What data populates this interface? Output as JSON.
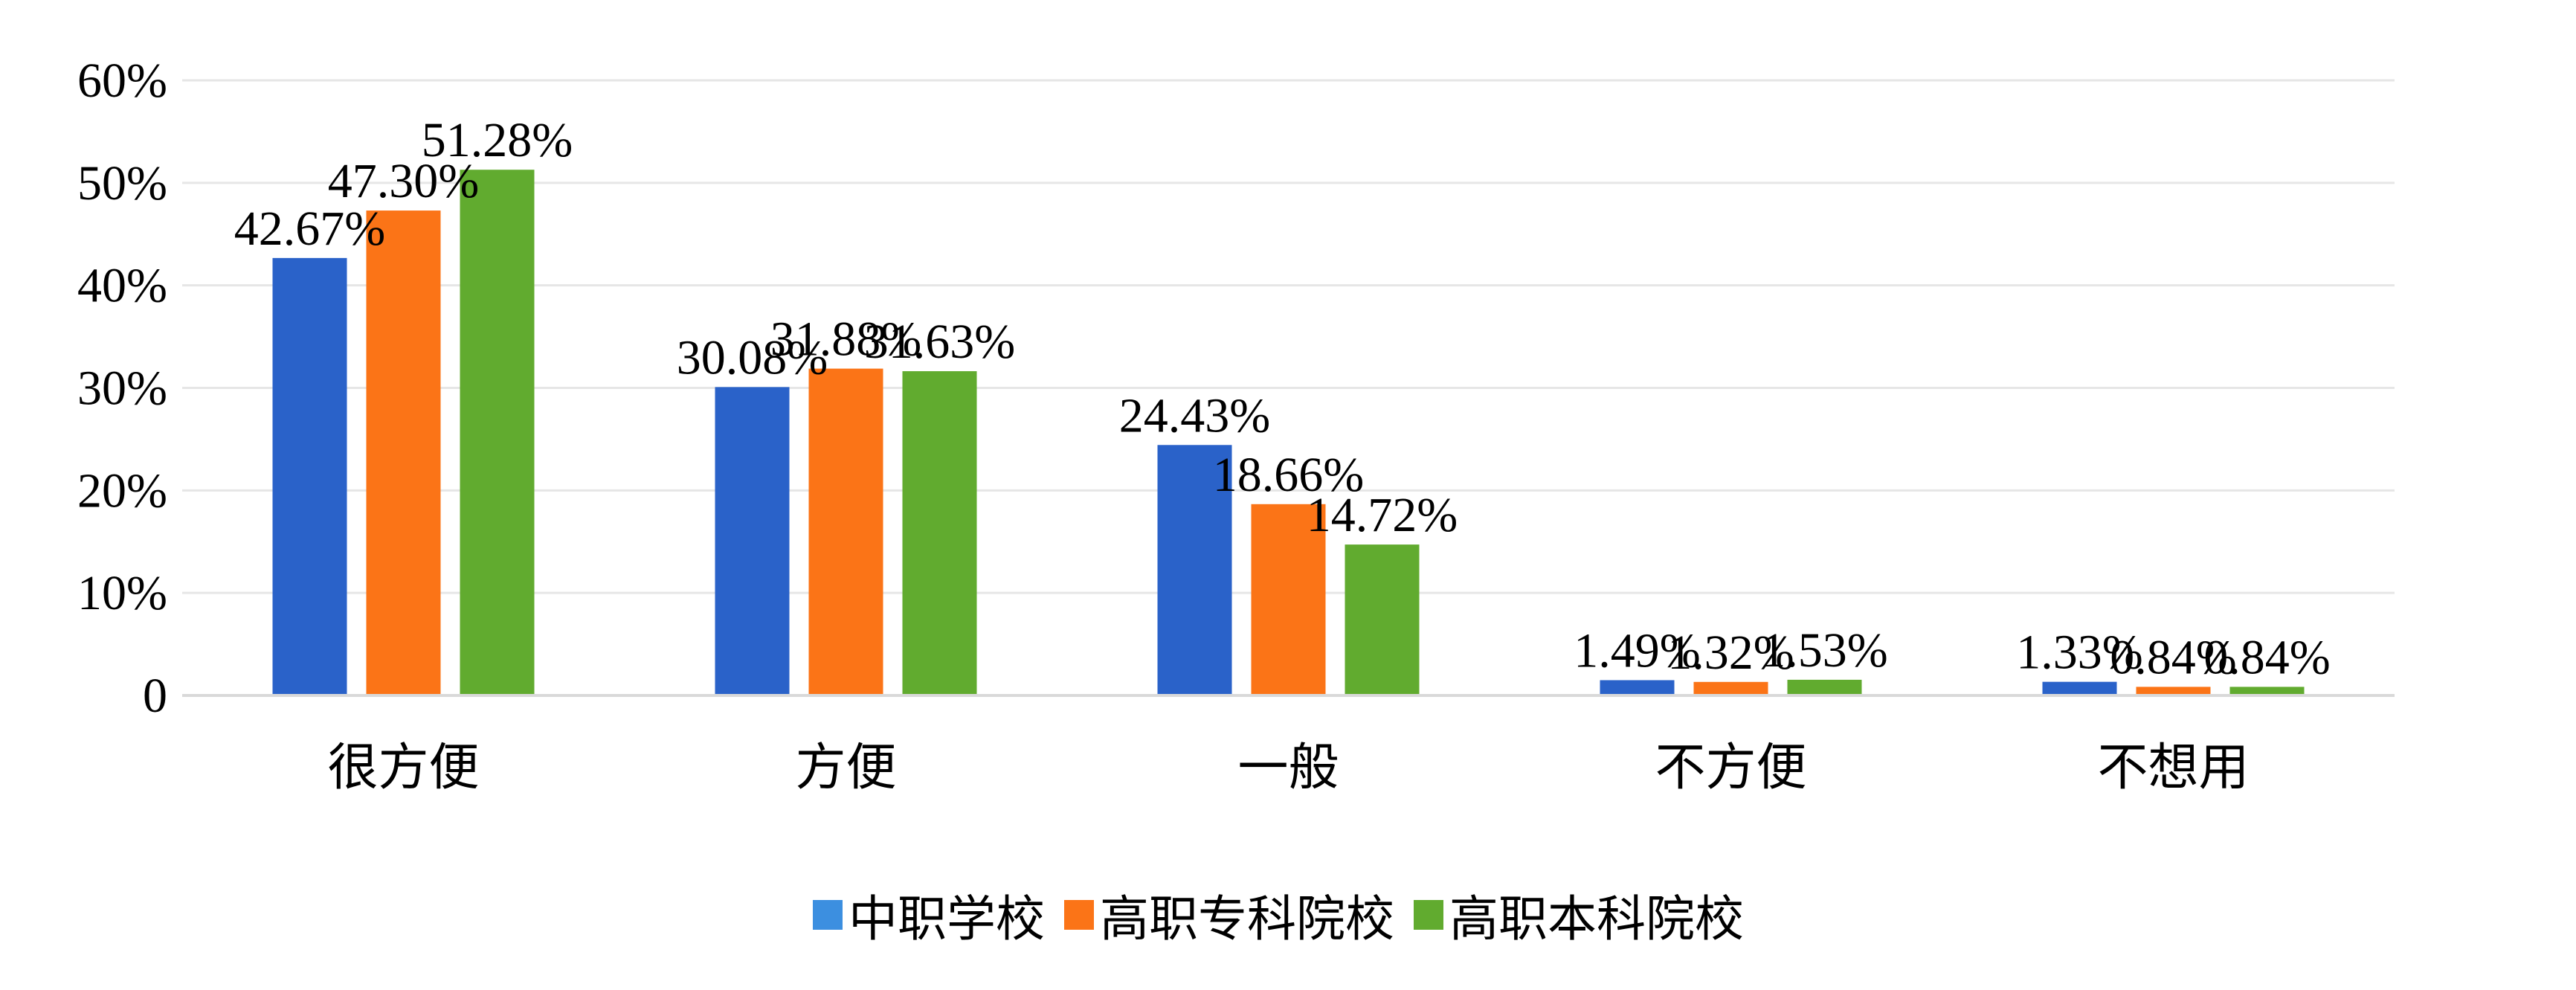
{
  "chart_data": {
    "type": "bar",
    "categories": [
      "很方便",
      "方便",
      "一般",
      "不方便",
      "不想用"
    ],
    "series": [
      {
        "name": "中职学校",
        "color": "#2a62c9",
        "legend_color": "#3c8fe0",
        "values": [
          42.67,
          30.08,
          24.43,
          1.49,
          1.33
        ],
        "labels": [
          "42.67%",
          "30.08%",
          "24.43%",
          "1.49%",
          "1.33%"
        ]
      },
      {
        "name": "高职专科院校",
        "color": "#fb7417",
        "legend_color": "#fb7417",
        "values": [
          47.3,
          31.88,
          18.66,
          1.32,
          0.84
        ],
        "labels": [
          "47.30%",
          "31.88%",
          "18.66%",
          "1.32%",
          "0.84%"
        ]
      },
      {
        "name": "高职本科院校",
        "color": "#61ab2f",
        "legend_color": "#61ab2f",
        "values": [
          51.28,
          31.63,
          14.72,
          1.53,
          0.84
        ],
        "labels": [
          "51.28%",
          "31.63%",
          "14.72%",
          "1.53%",
          "0.84%"
        ]
      }
    ],
    "y_ticks": [
      "0",
      "10%",
      "20%",
      "30%",
      "40%",
      "50%",
      "60%"
    ],
    "ylim": [
      0,
      60
    ],
    "grid": true,
    "legend_position": "bottom"
  }
}
